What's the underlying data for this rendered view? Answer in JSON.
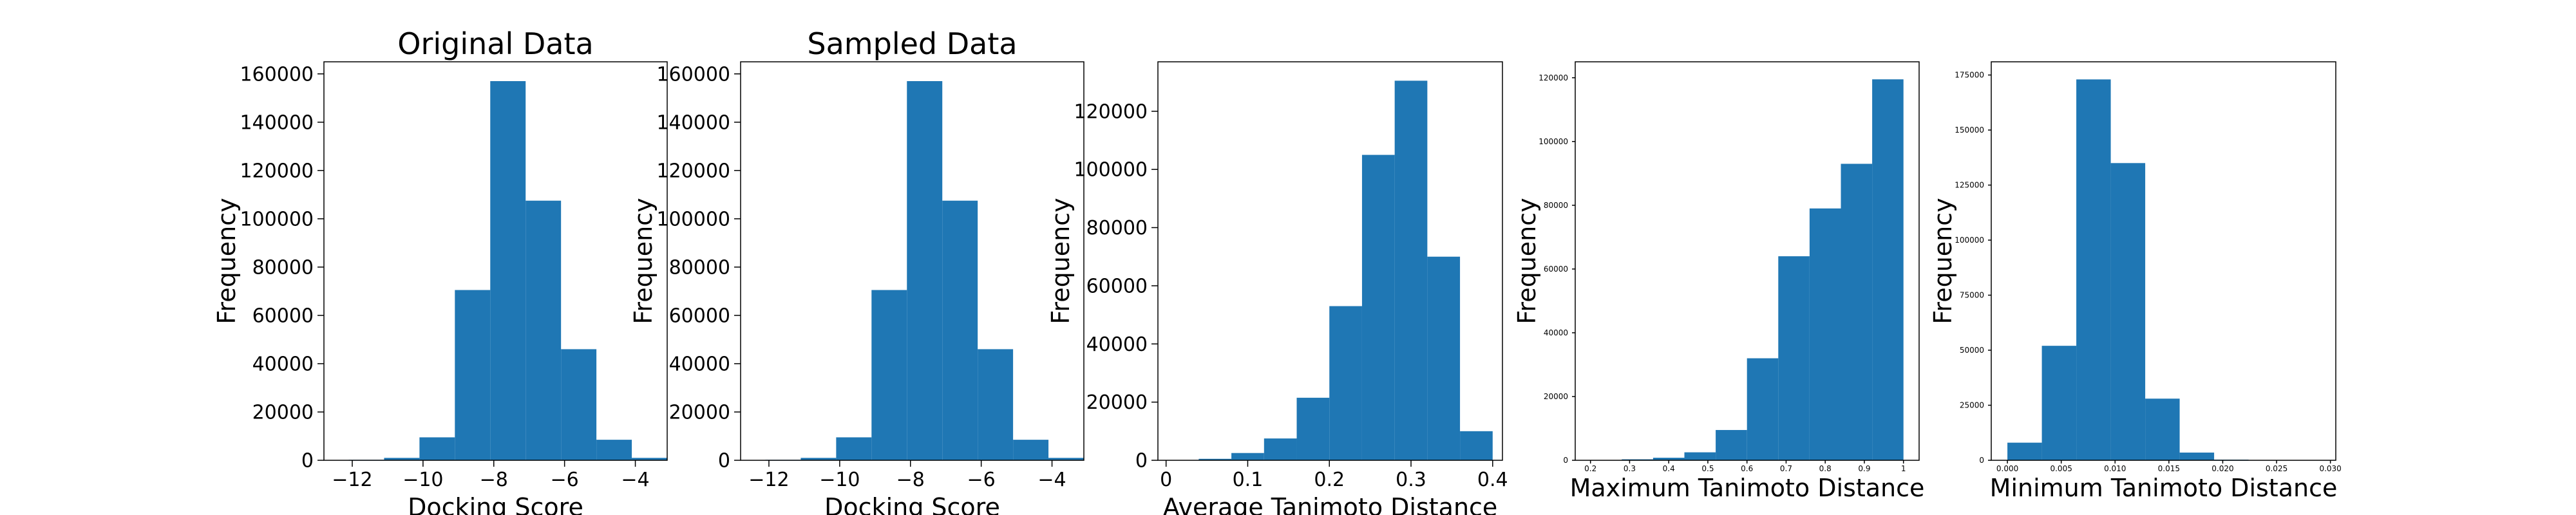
{
  "figure": {
    "bar_color": "#1f77b4"
  },
  "chart_data": [
    {
      "type": "bar",
      "title": "Original Data",
      "xlabel": "Docking Score",
      "ylabel": "Frequency",
      "xlim": [
        -12.8,
        -3.1
      ],
      "ylim": [
        0,
        165000
      ],
      "xticks": [
        -12,
        -10,
        -8,
        -6,
        -4
      ],
      "yticks": [
        0,
        20000,
        40000,
        60000,
        80000,
        100000,
        120000,
        140000,
        160000
      ],
      "tick_size": "large",
      "bins": [
        {
          "x0": -12.1,
          "x1": -11.1,
          "value": 200
        },
        {
          "x0": -11.1,
          "x1": -10.1,
          "value": 1000
        },
        {
          "x0": -10.1,
          "x1": -9.1,
          "value": 9500
        },
        {
          "x0": -9.1,
          "x1": -8.1,
          "value": 70500
        },
        {
          "x0": -8.1,
          "x1": -7.1,
          "value": 157000
        },
        {
          "x0": -7.1,
          "x1": -6.1,
          "value": 107500
        },
        {
          "x0": -6.1,
          "x1": -5.1,
          "value": 46000
        },
        {
          "x0": -5.1,
          "x1": -4.1,
          "value": 8500
        },
        {
          "x0": -4.1,
          "x1": -3.1,
          "value": 1000
        }
      ]
    },
    {
      "type": "bar",
      "title": "Sampled Data",
      "xlabel": "Docking Score",
      "ylabel": "Frequency",
      "xlim": [
        -12.8,
        -3.1
      ],
      "ylim": [
        0,
        165000
      ],
      "xticks": [
        -12,
        -10,
        -8,
        -6,
        -4
      ],
      "yticks": [
        0,
        20000,
        40000,
        60000,
        80000,
        100000,
        120000,
        140000,
        160000
      ],
      "tick_size": "large",
      "bins": [
        {
          "x0": -12.1,
          "x1": -11.1,
          "value": 200
        },
        {
          "x0": -11.1,
          "x1": -10.1,
          "value": 1000
        },
        {
          "x0": -10.1,
          "x1": -9.1,
          "value": 9500
        },
        {
          "x0": -9.1,
          "x1": -8.1,
          "value": 70500
        },
        {
          "x0": -8.1,
          "x1": -7.1,
          "value": 157000
        },
        {
          "x0": -7.1,
          "x1": -6.1,
          "value": 107500
        },
        {
          "x0": -6.1,
          "x1": -5.1,
          "value": 46000
        },
        {
          "x0": -5.1,
          "x1": -4.1,
          "value": 8500
        },
        {
          "x0": -4.1,
          "x1": -3.1,
          "value": 1000
        }
      ]
    },
    {
      "type": "bar",
      "title": "",
      "xlabel": "Average Tanimoto Distance",
      "ylabel": "Frequency",
      "xlim": [
        -0.01,
        0.412
      ],
      "ylim": [
        0,
        137000
      ],
      "xticks": [
        0.0,
        0.1,
        0.2,
        0.3,
        0.4
      ],
      "yticks": [
        0,
        20000,
        40000,
        60000,
        80000,
        100000,
        120000
      ],
      "tick_size": "large",
      "bins": [
        {
          "x0": 0.0,
          "x1": 0.04,
          "value": 100
        },
        {
          "x0": 0.04,
          "x1": 0.08,
          "value": 500
        },
        {
          "x0": 0.08,
          "x1": 0.12,
          "value": 2500
        },
        {
          "x0": 0.12,
          "x1": 0.16,
          "value": 7500
        },
        {
          "x0": 0.16,
          "x1": 0.2,
          "value": 21500
        },
        {
          "x0": 0.2,
          "x1": 0.24,
          "value": 53000
        },
        {
          "x0": 0.24,
          "x1": 0.28,
          "value": 105000
        },
        {
          "x0": 0.28,
          "x1": 0.32,
          "value": 130500
        },
        {
          "x0": 0.32,
          "x1": 0.36,
          "value": 70000
        },
        {
          "x0": 0.36,
          "x1": 0.4,
          "value": 10000
        }
      ]
    },
    {
      "type": "bar",
      "title": "",
      "xlabel": "Maximum Tanimoto Distance",
      "ylabel": "Frequency",
      "xlim": [
        0.161,
        1.04
      ],
      "ylim": [
        0,
        125000
      ],
      "xticks": [
        0.2,
        0.3,
        0.4,
        0.5,
        0.6,
        0.7,
        0.8,
        0.9,
        1.0
      ],
      "yticks": [
        0,
        20000,
        40000,
        60000,
        80000,
        100000,
        120000
      ],
      "tick_size": "small",
      "bins": [
        {
          "x0": 0.2,
          "x1": 0.28,
          "value": 100
        },
        {
          "x0": 0.28,
          "x1": 0.36,
          "value": 300
        },
        {
          "x0": 0.36,
          "x1": 0.44,
          "value": 800
        },
        {
          "x0": 0.44,
          "x1": 0.52,
          "value": 2500
        },
        {
          "x0": 0.52,
          "x1": 0.6,
          "value": 9500
        },
        {
          "x0": 0.6,
          "x1": 0.68,
          "value": 32000
        },
        {
          "x0": 0.68,
          "x1": 0.76,
          "value": 64000
        },
        {
          "x0": 0.76,
          "x1": 0.84,
          "value": 79000
        },
        {
          "x0": 0.84,
          "x1": 0.92,
          "value": 93000
        },
        {
          "x0": 0.92,
          "x1": 1.0,
          "value": 119500
        }
      ]
    },
    {
      "type": "bar",
      "title": "",
      "xlabel": "Minimum Tanimoto Distance",
      "ylabel": "Frequency",
      "xlim": [
        -0.0015,
        0.0305
      ],
      "ylim": [
        0,
        181000
      ],
      "xticks": [
        "0.000",
        "0.005",
        "0.010",
        "0.015",
        "0.020",
        "0.025",
        "0.030"
      ],
      "yticks": [
        0,
        25000,
        50000,
        75000,
        100000,
        125000,
        150000,
        175000
      ],
      "tick_size": "small",
      "bins": [
        {
          "x0": 0.0,
          "x1": 0.0032,
          "value": 8000
        },
        {
          "x0": 0.0032,
          "x1": 0.0064,
          "value": 52000
        },
        {
          "x0": 0.0064,
          "x1": 0.0096,
          "value": 173000
        },
        {
          "x0": 0.0096,
          "x1": 0.0128,
          "value": 135000
        },
        {
          "x0": 0.0128,
          "x1": 0.016,
          "value": 28000
        },
        {
          "x0": 0.016,
          "x1": 0.0192,
          "value": 3500
        },
        {
          "x0": 0.0192,
          "x1": 0.0224,
          "value": 300
        }
      ]
    }
  ]
}
